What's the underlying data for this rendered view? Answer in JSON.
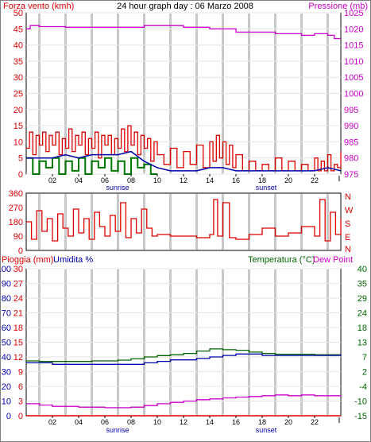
{
  "header": {
    "left_title": "Forza vento (kmh)",
    "center_title": "24 hour graph day : 06 Marzo 2008",
    "right_title": "Pressione (mb)"
  },
  "middle": {
    "direction_labels": [
      "N",
      "W",
      "S",
      "E",
      "N"
    ]
  },
  "bottom_header": {
    "left_title_1": "Pioggia (mm)",
    "left_title_2": "Umidita %",
    "right_title_1": "Temperatura (°C)",
    "right_title_2": "Dew Point"
  },
  "x_axis": {
    "ticks": [
      "02",
      "04",
      "06",
      "08",
      "10",
      "12",
      "14",
      "16",
      "18",
      "20",
      "22"
    ],
    "sunrise_label": "sunrise",
    "sunset_label": "sunset"
  },
  "colors": {
    "wind": "#dd0000",
    "wind_avg": "#0000aa",
    "gust_green": "#007700",
    "pressure": "#cc00cc",
    "temperature": "#006600",
    "humidity": "#0000aa",
    "dewpoint": "#cc00cc",
    "rain": "#dd0000",
    "grid": "#c8c8c8"
  },
  "chart_data": [
    {
      "type": "line",
      "x_unit": "hour",
      "left_axis": {
        "label": "Forza vento (kmh)",
        "ticks": [
          0,
          5,
          10,
          15,
          20,
          25,
          30,
          35,
          40,
          45,
          50
        ],
        "range": [
          0,
          50
        ]
      },
      "right_axis": {
        "label": "Pressione (mb)",
        "ticks": [
          975,
          980,
          985,
          990,
          995,
          1000,
          1005,
          1010,
          1015,
          1020,
          1025
        ],
        "range": [
          975,
          1025
        ]
      },
      "series": [
        {
          "name": "Forza vento (kmh)",
          "axis": "left",
          "x": [
            0,
            0.25,
            0.5,
            0.75,
            1,
            1.25,
            1.5,
            1.75,
            2,
            2.25,
            2.5,
            2.75,
            3,
            3.25,
            3.5,
            3.75,
            4,
            4.25,
            4.5,
            4.75,
            5,
            5.25,
            5.5,
            5.75,
            6,
            6.25,
            6.5,
            6.75,
            7,
            7.25,
            7.5,
            7.75,
            8,
            8.25,
            8.5,
            8.75,
            9,
            9.25,
            9.5,
            9.75,
            10,
            10.5,
            11,
            11.5,
            12,
            12.5,
            13,
            13.5,
            14,
            14.25,
            14.5,
            14.75,
            15,
            15.25,
            15.5,
            15.75,
            16,
            16.5,
            17,
            17.5,
            18,
            18.5,
            19,
            19.5,
            20,
            20.5,
            21,
            21.5,
            22,
            22.25,
            22.5,
            22.75,
            23,
            23.25,
            23.5,
            23.75,
            24
          ],
          "values": [
            8,
            13,
            6,
            12,
            9,
            13,
            7,
            12,
            9,
            13,
            6,
            11,
            8,
            14,
            7,
            12,
            9,
            13,
            6,
            11,
            8,
            13,
            5,
            12,
            9,
            12,
            6,
            11,
            8,
            14,
            7,
            15,
            9,
            13,
            6,
            12,
            8,
            11,
            4,
            10,
            6,
            3,
            8,
            2,
            7,
            3,
            9,
            2,
            10,
            4,
            12,
            5,
            10,
            3,
            9,
            2,
            6,
            1,
            4,
            1,
            3,
            1,
            5,
            1,
            4,
            1,
            3,
            1,
            5,
            1,
            4,
            1,
            6,
            1,
            3,
            2,
            7
          ]
        },
        {
          "name": "",
          "axis": "left",
          "x": [
            0,
            1,
            2,
            3,
            4,
            5,
            6,
            7,
            8,
            9,
            10,
            11,
            12,
            13,
            14,
            15,
            16,
            17,
            18,
            19,
            20,
            21,
            22,
            23,
            24
          ],
          "values": [
            5,
            5,
            5,
            6,
            5,
            6,
            6,
            6,
            7,
            4,
            2,
            1,
            1,
            1,
            2,
            2,
            1,
            1,
            1,
            1,
            1,
            1,
            1,
            2,
            1
          ]
        },
        {
          "name": "",
          "axis": "left",
          "x": [
            0,
            0.5,
            1,
            1.5,
            2,
            2.5,
            3,
            3.5,
            4,
            4.5,
            5,
            5.5,
            6,
            6.5,
            7,
            7.5,
            8,
            8.5,
            9,
            9.5,
            10
          ],
          "values": [
            5,
            0,
            4,
            2,
            5,
            0,
            4,
            1,
            5,
            0,
            4,
            2,
            5,
            1,
            4,
            0,
            5,
            2,
            3,
            0,
            0
          ]
        },
        {
          "name": "Pressione (mb)",
          "axis": "right",
          "x": [
            0,
            0.3,
            1,
            2,
            3,
            4,
            5,
            6,
            7,
            8,
            9,
            10,
            11,
            12,
            13,
            14,
            15,
            16,
            17,
            18,
            19,
            20,
            21,
            22,
            23,
            23.5,
            24
          ],
          "values": [
            1020,
            1021,
            1020.7,
            1020.7,
            1020.5,
            1020.5,
            1020.5,
            1020.5,
            1020.5,
            1020.5,
            1021,
            1021,
            1021,
            1020.5,
            1020.5,
            1020,
            1020,
            1019,
            1019,
            1019,
            1018.5,
            1018.5,
            1018,
            1018.5,
            1018,
            1017,
            1017
          ]
        }
      ]
    },
    {
      "type": "line",
      "x_unit": "hour",
      "y_axis": {
        "ticks": [
          0,
          90,
          180,
          270,
          360
        ],
        "range": [
          0,
          360
        ]
      },
      "series": [
        {
          "name": "",
          "x": [
            0,
            0.4,
            0.8,
            1.2,
            1.6,
            2,
            2.4,
            2.8,
            3.2,
            3.6,
            4,
            4.4,
            4.8,
            5.2,
            5.6,
            6,
            6.4,
            6.8,
            7.2,
            7.6,
            8,
            8.4,
            8.8,
            9.2,
            9.6,
            10,
            11,
            12,
            13,
            14,
            14.3,
            14.6,
            15,
            15.5,
            16,
            17,
            18,
            19,
            20,
            21,
            22,
            22.4,
            22.8,
            23.2,
            23.6,
            24
          ],
          "values": [
            180,
            70,
            250,
            120,
            200,
            60,
            230,
            140,
            90,
            260,
            110,
            200,
            70,
            240,
            150,
            90,
            220,
            120,
            300,
            80,
            200,
            110,
            260,
            140,
            90,
            100,
            90,
            90,
            80,
            100,
            320,
            90,
            300,
            80,
            70,
            100,
            140,
            90,
            110,
            150,
            90,
            320,
            60,
            240,
            100,
            200
          ]
        }
      ]
    },
    {
      "type": "line",
      "x_unit": "hour",
      "left_axis": {
        "label": "Pioggia (mm) / Umidita %",
        "rain_ticks": [
          0,
          3,
          6,
          9,
          12,
          15,
          18,
          21,
          24,
          27,
          30
        ],
        "humidity_ticks": [
          0,
          10,
          20,
          30,
          40,
          50,
          60,
          70,
          80,
          90,
          100
        ],
        "range": [
          0,
          100
        ]
      },
      "right_axis": {
        "label": "Temperatura (°C) / Dew Point",
        "ticks": [
          -15,
          -10,
          -4,
          2,
          7,
          13,
          18,
          24,
          29,
          35,
          40
        ],
        "range": [
          -15,
          40
        ]
      },
      "series": [
        {
          "name": "Pioggia (mm)",
          "axis": "left_rain",
          "x": [
            0,
            24
          ],
          "values": [
            0,
            0
          ]
        },
        {
          "name": "Umidita %",
          "axis": "left_humidity",
          "x": [
            0,
            2,
            4,
            6,
            8,
            9,
            10,
            11,
            12,
            13,
            14,
            15,
            16,
            17,
            18,
            19,
            20,
            21,
            22,
            23,
            24
          ],
          "values": [
            36,
            35,
            35,
            35,
            35,
            36,
            37,
            38,
            38,
            39,
            40,
            41,
            42,
            42,
            41,
            41,
            41,
            41,
            41,
            41,
            42
          ]
        },
        {
          "name": "Temperatura (°C)",
          "axis": "right",
          "x": [
            0,
            1,
            2,
            3,
            4,
            5,
            6,
            7,
            8,
            9,
            10,
            11,
            12,
            13,
            14,
            15,
            16,
            17,
            18,
            19,
            20,
            21,
            22,
            23,
            24
          ],
          "values": [
            5.5,
            5.3,
            5.3,
            5.3,
            5.3,
            5.5,
            5.5,
            5.8,
            6.3,
            7,
            7.5,
            7.8,
            8.3,
            9.2,
            10,
            9.7,
            9.5,
            8.8,
            8.3,
            8,
            8,
            8,
            7.8,
            7.8,
            7.8
          ]
        },
        {
          "name": "Dew Point",
          "axis": "right",
          "x": [
            0,
            1,
            2,
            3,
            4,
            5,
            6,
            7,
            8,
            9,
            10,
            11,
            12,
            13,
            14,
            15,
            16,
            17,
            18,
            19,
            20,
            21,
            22,
            23,
            24
          ],
          "values": [
            -10.5,
            -11,
            -11.5,
            -11.5,
            -11.8,
            -11.8,
            -12,
            -12,
            -11.8,
            -11.2,
            -10.5,
            -10,
            -9.5,
            -9,
            -8.7,
            -8.3,
            -8,
            -7.8,
            -7.5,
            -7.2,
            -7.5,
            -7.2,
            -7.5,
            -7.5,
            -7.3
          ]
        }
      ]
    }
  ]
}
